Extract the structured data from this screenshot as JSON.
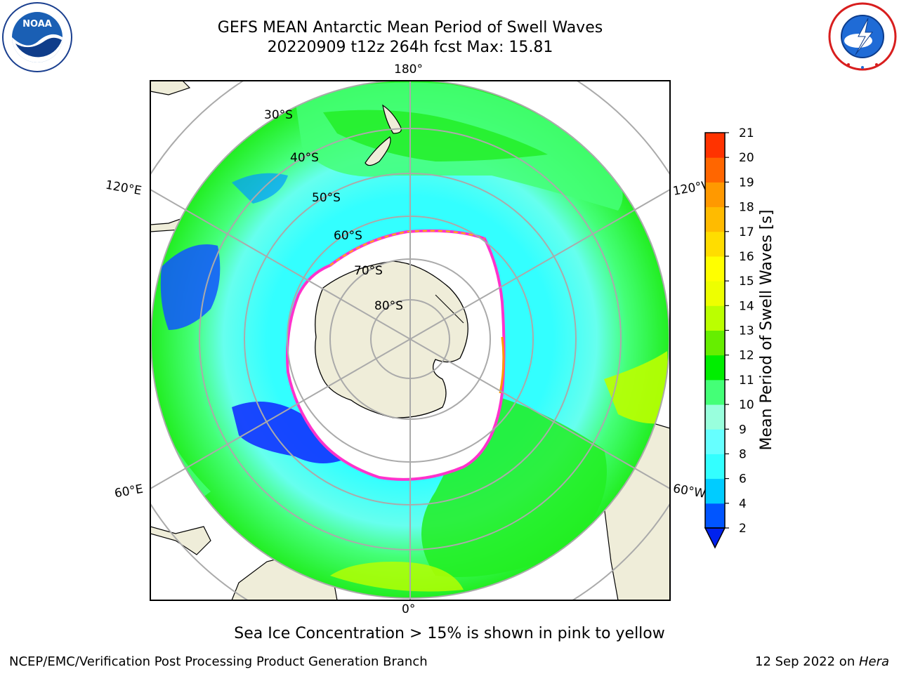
{
  "title": {
    "line1": "GEFS MEAN Antarctic Mean Period of Swell Waves",
    "line2": "20220909 t12z 264h fcst   Max: 15.81"
  },
  "logos": {
    "left": "noaa-logo",
    "left_text": "NOAA",
    "left_ring_text": "NATIONAL OCEANIC AND ATMOSPHERIC ADMINISTRATION · U.S. DEPARTMENT OF COMMERCE",
    "right": "nws-logo",
    "right_ring_text": "NATIONAL WEATHER SERVICE"
  },
  "map": {
    "projection": "south-polar-stereographic",
    "longitude_labels": {
      "top": "180°",
      "bottom": "0°",
      "upper_left": "120°E",
      "lower_left": "60°E",
      "upper_right": "120°W",
      "lower_right": "60°W"
    },
    "latitude_labels": [
      "30°S",
      "40°S",
      "50°S",
      "60°S",
      "70°S",
      "80°S"
    ],
    "land_color": "#efedd9",
    "ice_edge_color": "#ff33cc"
  },
  "colorbar": {
    "label": "Mean Period of Swell Waves [s]",
    "ticks": [
      "2",
      "4",
      "6",
      "8",
      "9",
      "10",
      "11",
      "12",
      "13",
      "14",
      "15",
      "16",
      "17",
      "18",
      "19",
      "20",
      "21"
    ],
    "colors": [
      "#0055ff",
      "#00ccff",
      "#33ffff",
      "#66ffff",
      "#99ffdd",
      "#44ff77",
      "#00ee00",
      "#66ee00",
      "#bbff00",
      "#eeff00",
      "#ffff00",
      "#ffdd00",
      "#ffbb00",
      "#ff9900",
      "#ff6600",
      "#ff3300",
      "#ff0000"
    ],
    "extend_color": "#0022ee"
  },
  "footer": {
    "note": "Sea Ice Concentration > 15% is shown in pink to yellow",
    "credit": "NCEP/EMC/Verification Post Processing Product Generation Branch",
    "date_text": "12 Sep 2022 on ",
    "machine": "Hera"
  }
}
